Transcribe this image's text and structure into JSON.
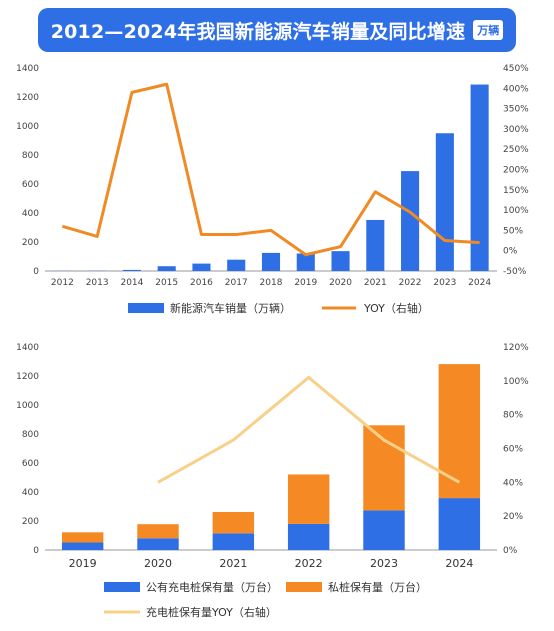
{
  "header": {
    "title": "2012—2024年我国新能源汽车销量及同比增速",
    "unit_badge": "万辆"
  },
  "chart_data": [
    {
      "type": "bar",
      "categories": [
        "2012",
        "2013",
        "2014",
        "2015",
        "2016",
        "2017",
        "2018",
        "2019",
        "2020",
        "2021",
        "2022",
        "2023",
        "2024"
      ],
      "series": [
        {
          "name": "新能源汽车销量（万辆）",
          "type": "bar",
          "axis": "left",
          "values": [
            1.3,
            1.8,
            7.5,
            33,
            51,
            78,
            125,
            121,
            137,
            352,
            689,
            950,
            1286
          ],
          "color": "#2f6fe6"
        },
        {
          "name": "YOY（右轴）",
          "type": "line",
          "axis": "right",
          "values": [
            60,
            35,
            390,
            410,
            40,
            40,
            50,
            -10,
            10,
            145,
            95,
            25,
            20
          ],
          "color": "#f08a24"
        }
      ],
      "left_axis": {
        "ticks": [
          "0",
          "200",
          "400",
          "600",
          "800",
          "1000",
          "1200",
          "1400"
        ],
        "ylim": [
          0,
          1400
        ]
      },
      "right_axis": {
        "ticks": [
          "-50%",
          "0%",
          "50%",
          "100%",
          "150%",
          "200%",
          "250%",
          "300%",
          "350%",
          "400%",
          "450%"
        ],
        "ylim": [
          -50,
          450
        ]
      },
      "legend": "bottom"
    },
    {
      "type": "bar",
      "stacked": true,
      "categories": [
        "2019",
        "2020",
        "2021",
        "2022",
        "2023",
        "2024"
      ],
      "series": [
        {
          "name": "公有充电桩保有量（万台）",
          "type": "bar",
          "axis": "left",
          "values": [
            52,
            81,
            115,
            180,
            273,
            358
          ],
          "color": "#2f6fe6"
        },
        {
          "name": "私桩保有量（万台）",
          "type": "bar",
          "axis": "left",
          "values": [
            70,
            97,
            147,
            341,
            587,
            924
          ],
          "color": "#f58a24"
        },
        {
          "name": "充电桩保有量YOY（右轴）",
          "type": "line",
          "axis": "right",
          "values": [
            null,
            40,
            65,
            102,
            65,
            40
          ],
          "color": "#f7d08a"
        }
      ],
      "left_axis": {
        "ticks": [
          "0",
          "200",
          "400",
          "600",
          "800",
          "1000",
          "1200",
          "1400"
        ],
        "ylim": [
          0,
          1400
        ]
      },
      "right_axis": {
        "ticks": [
          "0%",
          "20%",
          "40%",
          "60%",
          "80%",
          "100%",
          "120%"
        ],
        "ylim": [
          0,
          120
        ]
      },
      "legend": "bottom"
    }
  ]
}
